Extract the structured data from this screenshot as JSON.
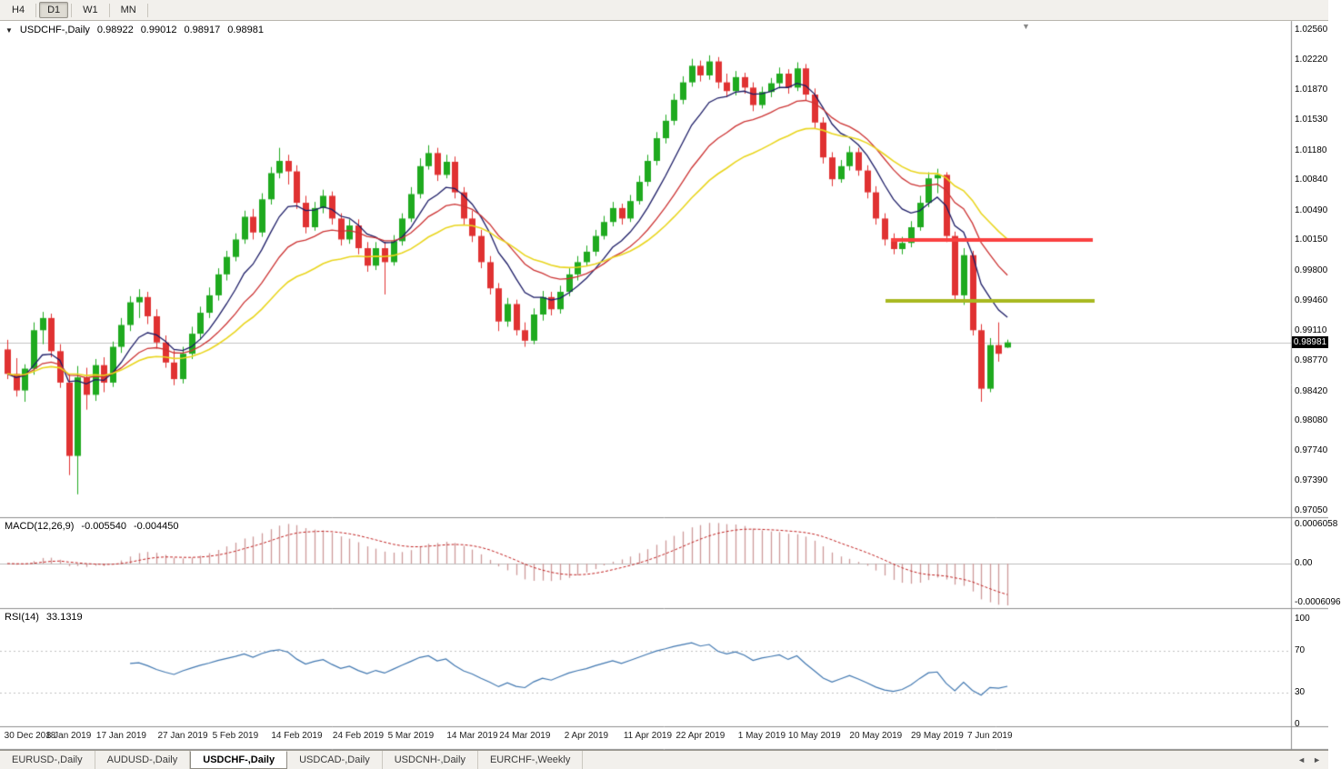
{
  "toolbar": {
    "timeframes": [
      {
        "label": "H4",
        "active": false
      },
      {
        "label": "D1",
        "active": true
      },
      {
        "label": "W1",
        "active": false
      },
      {
        "label": "MN",
        "active": false
      }
    ]
  },
  "main_chart": {
    "symbol_title": "USDCHF-,Daily",
    "open": "0.98922",
    "high": "0.99012",
    "low": "0.98917",
    "close": "0.98981",
    "current_price": "0.98981",
    "price_scale": [
      "1.02560",
      "1.02220",
      "1.01870",
      "1.01530",
      "1.01180",
      "1.00840",
      "1.00490",
      "1.00150",
      "0.99800",
      "0.99460",
      "0.99110",
      "0.98770",
      "0.98420",
      "0.98080",
      "0.97740",
      "0.97390",
      "0.97050"
    ]
  },
  "macd_panel": {
    "label": "MACD(12,26,9)",
    "macd_value": "-0.005540",
    "signal_value": "-0.004450",
    "scale": [
      "0.0006058",
      "0.00",
      "-0.0006096"
    ]
  },
  "rsi_panel": {
    "label": "RSI(14)",
    "value": "33.1319",
    "scale": [
      "100",
      "70",
      "30",
      "0"
    ]
  },
  "date_axis": [
    "30 Dec 2018",
    "8 Jan 2019",
    "17 Jan 2019",
    "27 Jan 2019",
    "5 Feb 2019",
    "14 Feb 2019",
    "24 Feb 2019",
    "5 Mar 2019",
    "14 Mar 2019",
    "24 Mar 2019",
    "2 Apr 2019",
    "11 Apr 2019",
    "22 Apr 2019",
    "1 May 2019",
    "10 May 2019",
    "20 May 2019",
    "29 May 2019",
    "7 Jun 2019"
  ],
  "tabs": [
    {
      "label": "EURUSD-,Daily",
      "active": false
    },
    {
      "label": "AUDUSD-,Daily",
      "active": false
    },
    {
      "label": "USDCHF-,Daily",
      "active": true
    },
    {
      "label": "USDCAD-,Daily",
      "active": false
    },
    {
      "label": "USDCNH-,Daily",
      "active": false
    },
    {
      "label": "EURCHF-,Weekly",
      "active": false
    }
  ],
  "tab_nav": {
    "left": "◄",
    "right": "►"
  },
  "colors": {
    "up_candle": "#1faa1f",
    "down_candle": "#e03232",
    "ma_fast": "#1c1c66",
    "ma_mid": "#cc3333",
    "ma_slow": "#e9d51e",
    "hline_red": "#fa4040",
    "hline_olive": "#a8b820",
    "macd_hist": "#cc9999",
    "macd_signal": "#c02020",
    "rsi_line": "#4077b0",
    "price_line": "#c4c4c4",
    "panel_border": "#8c8c8c",
    "price_tag_bg": "#000000"
  },
  "chart_data": {
    "type": "candlestick",
    "symbol": "USDCHF",
    "timeframe": "Daily",
    "ylim": [
      0.9705,
      1.0256
    ],
    "current_price": 0.98981,
    "date_tick_indices": [
      0,
      7,
      13,
      20,
      26,
      33,
      40,
      46,
      53,
      59,
      66,
      73,
      79,
      86,
      92,
      99,
      106,
      112
    ],
    "hlines": [
      {
        "price": 1.0015,
        "x1": 980,
        "x2": 1202,
        "color_key": "hline_red",
        "width": 4
      },
      {
        "price": 0.9946,
        "x1": 974,
        "x2": 1204,
        "color_key": "hline_olive",
        "width": 4
      }
    ],
    "indicators": {
      "moving_averages": [
        {
          "type": "ema",
          "period": 8,
          "color_key": "ma_fast"
        },
        {
          "type": "ema",
          "period": 16,
          "color_key": "ma_mid"
        },
        {
          "type": "ema",
          "period": 28,
          "color_key": "ma_slow"
        }
      ],
      "macd": {
        "fast": 12,
        "slow": 26,
        "signal": 9,
        "macd_value": -0.00554,
        "signal_value": -0.00445
      },
      "rsi": {
        "period": 14,
        "current": 33.1319,
        "levels": [
          70,
          30
        ]
      }
    },
    "candles": [
      [
        0.989,
        0.9901,
        0.9856,
        0.9862
      ],
      [
        0.9862,
        0.988,
        0.9836,
        0.9843
      ],
      [
        0.9843,
        0.9873,
        0.983,
        0.9868
      ],
      [
        0.9868,
        0.9921,
        0.9861,
        0.9912
      ],
      [
        0.9912,
        0.9933,
        0.9896,
        0.9926
      ],
      [
        0.9926,
        0.9931,
        0.9881,
        0.9888
      ],
      [
        0.9888,
        0.9896,
        0.9846,
        0.9852
      ],
      [
        0.9852,
        0.9861,
        0.9746,
        0.9768
      ],
      [
        0.9768,
        0.9871,
        0.9724,
        0.9858
      ],
      [
        0.9858,
        0.9869,
        0.9821,
        0.9838
      ],
      [
        0.9838,
        0.9879,
        0.9831,
        0.9872
      ],
      [
        0.9872,
        0.9881,
        0.9841,
        0.9852
      ],
      [
        0.9852,
        0.9899,
        0.9847,
        0.9893
      ],
      [
        0.9893,
        0.9926,
        0.9886,
        0.9918
      ],
      [
        0.9918,
        0.9951,
        0.9911,
        0.9944
      ],
      [
        0.9944,
        0.9959,
        0.9926,
        0.995
      ],
      [
        0.995,
        0.9956,
        0.9919,
        0.9928
      ],
      [
        0.9928,
        0.9936,
        0.9891,
        0.9898
      ],
      [
        0.9898,
        0.9906,
        0.9869,
        0.9875
      ],
      [
        0.9875,
        0.9889,
        0.9849,
        0.9856
      ],
      [
        0.9856,
        0.9893,
        0.9851,
        0.9885
      ],
      [
        0.9885,
        0.9916,
        0.9879,
        0.9908
      ],
      [
        0.9908,
        0.9939,
        0.9901,
        0.9932
      ],
      [
        0.9932,
        0.9961,
        0.9926,
        0.9952
      ],
      [
        0.9952,
        0.9983,
        0.9946,
        0.9976
      ],
      [
        0.9976,
        1.0003,
        0.9969,
        0.9996
      ],
      [
        0.9996,
        1.0023,
        0.9991,
        1.0016
      ],
      [
        1.0016,
        1.0049,
        1.0011,
        1.0042
      ],
      [
        1.0042,
        1.0051,
        1.0016,
        1.0024
      ],
      [
        1.0024,
        1.0069,
        1.0019,
        1.0062
      ],
      [
        1.0062,
        1.0099,
        1.0056,
        1.0092
      ],
      [
        1.0092,
        1.0121,
        1.0086,
        1.0106
      ],
      [
        1.0106,
        1.0113,
        1.0079,
        1.0094
      ],
      [
        1.0094,
        1.0101,
        1.0051,
        1.0058
      ],
      [
        1.0058,
        1.0066,
        1.0023,
        1.003
      ],
      [
        1.003,
        1.0059,
        1.0026,
        1.0052
      ],
      [
        1.0052,
        1.0073,
        1.0046,
        1.0066
      ],
      [
        1.0066,
        1.0071,
        1.0033,
        1.004
      ],
      [
        1.004,
        1.0046,
        1.0009,
        1.0016
      ],
      [
        1.0016,
        1.0039,
        1.0011,
        1.0032
      ],
      [
        1.0032,
        1.0039,
        0.9999,
        1.0006
      ],
      [
        1.0006,
        1.0013,
        0.9979,
        0.9986
      ],
      [
        0.9986,
        1.0013,
        0.9981,
        1.0006
      ],
      [
        1.0006,
        1.0013,
        0.9953,
        0.999
      ],
      [
        0.999,
        1.0021,
        0.9986,
        1.0014
      ],
      [
        1.0014,
        1.0046,
        1.0009,
        1.004
      ],
      [
        1.004,
        1.0076,
        1.0036,
        1.0068
      ],
      [
        1.0068,
        1.0109,
        1.0063,
        1.01
      ],
      [
        1.01,
        1.0124,
        1.0096,
        1.0115
      ],
      [
        1.0115,
        1.0121,
        1.0083,
        1.009
      ],
      [
        1.009,
        1.0113,
        1.0086,
        1.0105
      ],
      [
        1.0105,
        1.0111,
        1.0063,
        1.007
      ],
      [
        1.007,
        1.0076,
        1.0033,
        1.004
      ],
      [
        1.004,
        1.0049,
        1.0013,
        1.002
      ],
      [
        1.002,
        1.0027,
        0.9983,
        0.999
      ],
      [
        0.999,
        0.9997,
        0.9953,
        0.996
      ],
      [
        0.996,
        0.9966,
        0.9911,
        0.9922
      ],
      [
        0.9922,
        0.9949,
        0.9916,
        0.9942
      ],
      [
        0.9942,
        0.9947,
        0.9906,
        0.9912
      ],
      [
        0.9912,
        0.9921,
        0.9893,
        0.99
      ],
      [
        0.99,
        0.9937,
        0.9896,
        0.993
      ],
      [
        0.993,
        0.9957,
        0.9923,
        0.995
      ],
      [
        0.995,
        0.9956,
        0.9929,
        0.9936
      ],
      [
        0.9936,
        0.9963,
        0.9931,
        0.9956
      ],
      [
        0.9956,
        0.9983,
        0.9951,
        0.9976
      ],
      [
        0.9976,
        0.9997,
        0.9969,
        0.999
      ],
      [
        0.999,
        1.0009,
        0.9986,
        1.0002
      ],
      [
        1.0002,
        1.0027,
        0.9997,
        1.002
      ],
      [
        1.002,
        1.0043,
        1.0016,
        1.0036
      ],
      [
        1.0036,
        1.0059,
        1.0031,
        1.0052
      ],
      [
        1.0052,
        1.0057,
        1.0033,
        1.004
      ],
      [
        1.004,
        1.0067,
        1.0036,
        1.006
      ],
      [
        1.006,
        1.0089,
        1.0056,
        1.0082
      ],
      [
        1.0082,
        1.0113,
        1.0077,
        1.0106
      ],
      [
        1.0106,
        1.0139,
        1.0101,
        1.0132
      ],
      [
        1.0132,
        1.0159,
        1.0126,
        1.0152
      ],
      [
        1.0152,
        1.0183,
        1.0147,
        1.0176
      ],
      [
        1.0176,
        1.0203,
        1.0171,
        1.0196
      ],
      [
        1.0196,
        1.0223,
        1.0191,
        1.0215
      ],
      [
        1.0215,
        1.0221,
        1.0197,
        1.0204
      ],
      [
        1.0204,
        1.0227,
        1.0199,
        1.022
      ],
      [
        1.022,
        1.0225,
        1.0189,
        1.0196
      ],
      [
        1.0196,
        1.0206,
        1.0179,
        1.0186
      ],
      [
        1.0186,
        1.0209,
        1.0181,
        1.0202
      ],
      [
        1.0202,
        1.0207,
        1.0183,
        1.019
      ],
      [
        1.019,
        1.0196,
        1.0163,
        1.017
      ],
      [
        1.017,
        1.0191,
        1.0166,
        1.0185
      ],
      [
        1.0185,
        1.0201,
        1.0179,
        1.0195
      ],
      [
        1.0195,
        1.0213,
        1.0189,
        1.0206
      ],
      [
        1.0206,
        1.0211,
        1.0183,
        1.019
      ],
      [
        1.019,
        1.0219,
        1.0186,
        1.0212
      ],
      [
        1.0212,
        1.0217,
        1.0175,
        1.0182
      ],
      [
        1.0182,
        1.0189,
        1.0143,
        1.015
      ],
      [
        1.015,
        1.0156,
        1.0103,
        1.011
      ],
      [
        1.011,
        1.0116,
        1.0077,
        1.0085
      ],
      [
        1.0085,
        1.0107,
        1.0081,
        1.01
      ],
      [
        1.01,
        1.0123,
        1.0095,
        1.0116
      ],
      [
        1.0116,
        1.0121,
        1.0089,
        1.0095
      ],
      [
        1.0095,
        1.0101,
        1.0063,
        1.007
      ],
      [
        1.007,
        1.0077,
        1.0033,
        1.004
      ],
      [
        1.004,
        1.0046,
        1.0009,
        1.0016
      ],
      [
        1.0016,
        1.0023,
        0.9999,
        1.0005
      ],
      [
        1.0005,
        1.0019,
        0.9999,
        1.0012
      ],
      [
        1.0012,
        1.0037,
        1.0007,
        1.003
      ],
      [
        1.003,
        1.0066,
        1.0026,
        1.0058
      ],
      [
        1.0058,
        1.0093,
        1.0053,
        1.0086
      ],
      [
        1.0086,
        1.0097,
        1.0069,
        1.009
      ],
      [
        1.009,
        1.0093,
        1.0013,
        1.002
      ],
      [
        1.002,
        1.0025,
        0.9945,
        0.9952
      ],
      [
        0.9952,
        1.0006,
        0.9941,
        0.9998
      ],
      [
        0.9998,
        1.0003,
        0.9906,
        0.9912
      ],
      [
        0.9912,
        0.9919,
        0.983,
        0.9845
      ],
      [
        0.9845,
        0.9903,
        0.9841,
        0.9895
      ],
      [
        0.9895,
        0.9921,
        0.9876,
        0.9885
      ],
      [
        0.98922,
        0.99012,
        0.98917,
        0.98981
      ]
    ]
  }
}
